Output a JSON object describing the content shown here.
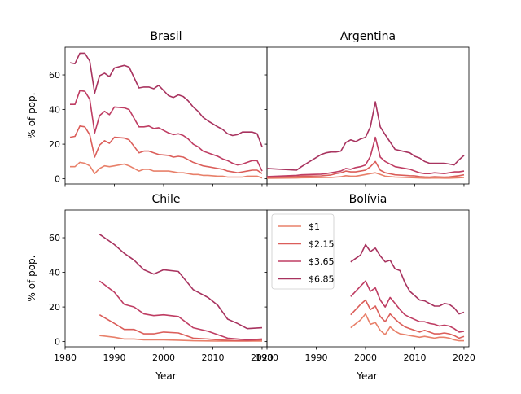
{
  "chart_data": {
    "type": "line",
    "colors": [
      "#e8806a",
      "#db5e5a",
      "#bf3d63",
      "#a8335f"
    ],
    "legend": {
      "location": "upper left of Bolívia panel",
      "entries": [
        "$1",
        "$2.15",
        "$3.65",
        "$6.85"
      ]
    },
    "xlabel": "Year",
    "ylabel": "% of pop.",
    "xlim": [
      1980,
      2021
    ],
    "ylim": [
      -3,
      76
    ],
    "x_ticks": [
      1980,
      1990,
      2000,
      2010,
      2020
    ],
    "y_ticks": [
      0,
      20,
      40,
      60
    ],
    "panels": [
      {
        "title": "Brasil",
        "x": [
          1981,
          1982,
          1983,
          1984,
          1985,
          1986,
          1987,
          1988,
          1989,
          1990,
          1992,
          1993,
          1995,
          1996,
          1997,
          1998,
          1999,
          2001,
          2002,
          2003,
          2004,
          2005,
          2006,
          2007,
          2008,
          2009,
          2011,
          2012,
          2013,
          2014,
          2015,
          2016,
          2017,
          2018,
          2019,
          2020
        ],
        "series": [
          {
            "name": "$1",
            "values": [
              7,
              7,
              9.5,
              9,
              7.5,
              3,
              6,
              7.5,
              7,
              7.5,
              8.5,
              7.5,
              4.5,
              5.5,
              5.5,
              4.5,
              4.5,
              4.5,
              4,
              3.5,
              3.5,
              3,
              2.5,
              2.5,
              2,
              2,
              1.5,
              1.5,
              1,
              1,
              1,
              1,
              1.5,
              1.5,
              1.5,
              0.5
            ]
          },
          {
            "name": "$2.15",
            "values": [
              24,
              24.5,
              30.5,
              30,
              25.5,
              12.5,
              19.5,
              22,
              20.5,
              24,
              23.5,
              22.5,
              15,
              16,
              16,
              15,
              14,
              13.5,
              12.5,
              13,
              12.5,
              11,
              9.5,
              8.5,
              7.5,
              7,
              6,
              5.5,
              4.5,
              4,
              3.5,
              4,
              4.5,
              5,
              5,
              3
            ]
          },
          {
            "name": "$3.65",
            "values": [
              43,
              43,
              51,
              50.5,
              46,
              26.5,
              36.5,
              39,
              37,
              41.5,
              41,
              40,
              30,
              30,
              30.5,
              29,
              29.5,
              26.5,
              25.5,
              26,
              25,
              23,
              20,
              18.5,
              16,
              15,
              13,
              11.5,
              10.5,
              9,
              8,
              8.5,
              9.5,
              10.5,
              10.5,
              4.5
            ]
          },
          {
            "name": "$6.85",
            "values": [
              67,
              66.5,
              72.5,
              72.5,
              68,
              49.5,
              59.5,
              61,
              59,
              64,
              65.5,
              64.5,
              52.5,
              53,
              53,
              52,
              54,
              48,
              47,
              48.5,
              47.5,
              45,
              41.5,
              39,
              35.5,
              33.5,
              30,
              28.5,
              26,
              25,
              25.5,
              27,
              27,
              27,
              26,
              18.5
            ]
          }
        ]
      },
      {
        "title": "Argentina",
        "x": [
          1980,
          1986,
          1987,
          1991,
          1992,
          1993,
          1994,
          1995,
          1996,
          1997,
          1998,
          1999,
          2000,
          2001,
          2002,
          2003,
          2004,
          2006,
          2009,
          2010,
          2011,
          2012,
          2013,
          2014,
          2016,
          2017,
          2018,
          2019,
          2020
        ],
        "series": [
          {
            "name": "$1",
            "values": [
              0.3,
              0.5,
              0.6,
              0.7,
              0.8,
              0.8,
              1,
              1.2,
              1.8,
              1.5,
              1.5,
              2,
              2.5,
              3,
              3.5,
              2.5,
              1.5,
              1,
              0.7,
              0.6,
              0.5,
              0.4,
              0.4,
              0.5,
              0.4,
              0.4,
              0.5,
              0.6,
              0.8
            ]
          },
          {
            "name": "$2.15",
            "values": [
              0.7,
              1.3,
              1.5,
              1.7,
              2,
              2.2,
              3,
              3.5,
              4.5,
              4,
              4,
              4.5,
              5,
              7,
              10,
              5,
              3.5,
              2.3,
              1.8,
              1.7,
              1.3,
              1.1,
              1,
              1.2,
              1,
              1.1,
              1.4,
              1.8,
              2.3
            ]
          },
          {
            "name": "$3.65",
            "values": [
              1.3,
              2,
              2.3,
              2.7,
              3,
              3.5,
              4,
              4.5,
              6,
              5.5,
              6.5,
              7,
              8,
              13,
              24,
              12.5,
              10,
              7,
              5.5,
              4.5,
              3.5,
              3,
              3,
              3.5,
              3,
              3.5,
              4,
              4,
              4.5
            ]
          },
          {
            "name": "$6.85",
            "values": [
              6,
              5,
              7,
              14,
              15,
              15.5,
              15.5,
              16,
              21,
              22.5,
              21.5,
              23,
              24,
              30,
              44.5,
              30,
              25.5,
              17,
              15,
              13,
              12,
              10,
              9,
              9,
              9,
              8.5,
              8,
              11,
              13.5
            ]
          }
        ]
      },
      {
        "title": "Chile",
        "x": [
          1987,
          1990,
          1992,
          1994,
          1996,
          1998,
          2000,
          2003,
          2006,
          2009,
          2011,
          2013,
          2015,
          2017,
          2020
        ],
        "series": [
          {
            "name": "$1",
            "values": [
              3.5,
              2.5,
              1.5,
              1.5,
              1,
              1,
              1,
              0.8,
              0.5,
              0.4,
              0.3,
              0.3,
              0.3,
              0.3,
              0.3
            ]
          },
          {
            "name": "$2.15",
            "values": [
              15.5,
              10.5,
              7,
              7,
              4.5,
              4.5,
              5.5,
              5,
              2,
              1.5,
              1,
              0.7,
              0.5,
              0.5,
              1
            ]
          },
          {
            "name": "$3.65",
            "values": [
              35,
              28.5,
              21.5,
              20,
              16,
              15,
              15.5,
              14.5,
              8,
              6,
              4,
              2,
              1.5,
              1,
              1.5
            ]
          },
          {
            "name": "$6.85",
            "values": [
              62,
              56,
              51,
              47,
              41.5,
              39,
              41.5,
              40.5,
              30,
              25.5,
              21,
              13,
              10.5,
              7.5,
              8
            ]
          }
        ]
      },
      {
        "title": "Bolívia",
        "x": [
          1997,
          1999,
          2000,
          2001,
          2002,
          2003,
          2004,
          2005,
          2006,
          2007,
          2008,
          2009,
          2011,
          2012,
          2013,
          2014,
          2015,
          2016,
          2017,
          2018,
          2019,
          2020
        ],
        "series": [
          {
            "name": "$1",
            "values": [
              8,
              12.5,
              16,
              10,
              11,
              6.5,
              4,
              8.5,
              6,
              4.5,
              4,
              3.5,
              2.5,
              3,
              2.5,
              2,
              2.5,
              2.5,
              2,
              1,
              0.5,
              0.5
            ]
          },
          {
            "name": "$2.15",
            "values": [
              15.5,
              21.5,
              24,
              18.5,
              20.5,
              14.5,
              11.5,
              16,
              13,
              10.5,
              8.5,
              7.5,
              5.5,
              6.5,
              5.5,
              4.5,
              4.5,
              5,
              4.5,
              3.5,
              2,
              3
            ]
          },
          {
            "name": "$3.65",
            "values": [
              26,
              32,
              35,
              29,
              31,
              24,
              20,
              25.5,
              22,
              18.5,
              15.5,
              14,
              11.5,
              11.5,
              10.5,
              10,
              9,
              9.5,
              9,
              7.5,
              5.5,
              6
            ]
          },
          {
            "name": "$6.85",
            "values": [
              46,
              50,
              56,
              52,
              54,
              49.5,
              46,
              47,
              42,
              41,
              34,
              29,
              24,
              23.5,
              22,
              20.5,
              20.5,
              22,
              21.5,
              19.5,
              16,
              17
            ]
          }
        ]
      }
    ]
  }
}
